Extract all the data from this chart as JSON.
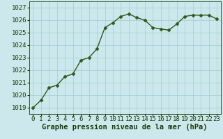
{
  "x": [
    0,
    1,
    2,
    3,
    4,
    5,
    6,
    7,
    8,
    9,
    10,
    11,
    12,
    13,
    14,
    15,
    16,
    17,
    18,
    19,
    20,
    21,
    22,
    23
  ],
  "y": [
    1019.0,
    1019.6,
    1020.6,
    1020.8,
    1021.5,
    1021.7,
    1022.8,
    1023.0,
    1023.7,
    1025.4,
    1025.8,
    1026.3,
    1026.5,
    1026.2,
    1026.0,
    1025.4,
    1025.3,
    1025.2,
    1025.7,
    1026.3,
    1026.4,
    1026.4,
    1026.4,
    1026.1
  ],
  "ylim": [
    1018.5,
    1027.5
  ],
  "xlim": [
    -0.5,
    23.5
  ],
  "yticks": [
    1019,
    1020,
    1021,
    1022,
    1023,
    1024,
    1025,
    1026,
    1027
  ],
  "xticks": [
    0,
    1,
    2,
    3,
    4,
    5,
    6,
    7,
    8,
    9,
    10,
    11,
    12,
    13,
    14,
    15,
    16,
    17,
    18,
    19,
    20,
    21,
    22,
    23
  ],
  "line_color": "#2d5a1b",
  "marker_color": "#2d5a1b",
  "bg_color": "#cce8ec",
  "grid_color": "#9ecdd4",
  "xlabel": "Graphe pression niveau de la mer (hPa)",
  "xlabel_color": "#1a3a0a",
  "tick_color": "#1a3a0a",
  "xlabel_fontsize": 7.5,
  "tick_fontsize": 6.5,
  "line_width": 1.0,
  "marker_size": 2.5
}
